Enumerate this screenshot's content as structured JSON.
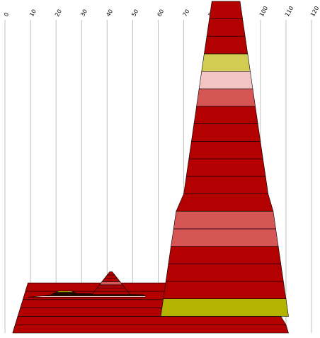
{
  "chart_data": {
    "type": "area",
    "title": "",
    "xlabel": "",
    "ylabel": "",
    "xlim": [
      0,
      120
    ],
    "x_ticks": [
      "0",
      "10",
      "20",
      "30",
      "40",
      "50",
      "60",
      "70",
      "80",
      "90",
      "100",
      "110",
      "120"
    ],
    "grid": true,
    "legend": "none",
    "colors": {
      "dark_red": "#b30000",
      "medium_red": "#d65656",
      "pink": "#f2c4c4",
      "khaki": "#d2cd52",
      "olive": "#b3b300",
      "dark_brown": "#5a1b00",
      "black_brown": "#2e0c00"
    },
    "stacks": [
      {
        "layers": [
          {
            "x": [
              3,
              111
            ],
            "color": "dark_red"
          },
          {
            "x": [
              4,
              110
            ],
            "color": "dark_red"
          },
          {
            "x": [
              5,
              108
            ],
            "color": "dark_red"
          },
          {
            "x": [
              6,
              107
            ],
            "color": "dark_red"
          },
          {
            "x": [
              7,
              106
            ],
            "color": "dark_red"
          },
          {
            "x": [
              8,
              105
            ],
            "color": "dark_red"
          }
        ]
      },
      {
        "layers": [
          {
            "x": [
              61,
              111
            ],
            "color": "olive"
          },
          {
            "x": [
              62,
              110
            ],
            "color": "dark_red"
          },
          {
            "x": [
              63,
              109
            ],
            "color": "dark_red"
          },
          {
            "x": [
              64,
              108
            ],
            "color": "dark_red"
          },
          {
            "x": [
              65,
              107
            ],
            "color": "medium_red"
          },
          {
            "x": [
              66,
              106
            ],
            "color": "medium_red"
          },
          {
            "x": [
              67,
              105
            ],
            "color": "dark_red"
          },
          {
            "x": [
              70,
              103
            ],
            "color": "dark_red"
          },
          {
            "x": [
              71,
              102
            ],
            "color": "dark_red"
          },
          {
            "x": [
              72,
              101
            ],
            "color": "dark_red"
          },
          {
            "x": [
              73,
              100
            ],
            "color": "dark_red"
          },
          {
            "x": [
              74,
              99
            ],
            "color": "dark_red"
          },
          {
            "x": [
              75,
              98
            ],
            "color": "medium_red"
          },
          {
            "x": [
              76,
              97
            ],
            "color": "pink"
          },
          {
            "x": [
              77,
              96
            ],
            "color": "khaki"
          },
          {
            "x": [
              78,
              95
            ],
            "color": "dark_red"
          },
          {
            "x": [
              79,
              94
            ],
            "color": "dark_red"
          },
          {
            "x": [
              80,
              93
            ],
            "color": "dark_red"
          }
        ]
      },
      {
        "layers": [
          {
            "x": [
              9,
              55
            ],
            "color": "pink"
          },
          {
            "x": [
              15,
              55
            ],
            "color": "dark_brown"
          },
          {
            "x": [
              18,
              54
            ],
            "color": "black_brown"
          },
          {
            "x": [
              19,
              28
            ],
            "color": "black_brown"
          },
          {
            "x": [
              20,
              27
            ],
            "color": "olive"
          }
        ]
      },
      {
        "layers": [
          {
            "x": [
              34,
              49
            ],
            "color": "dark_red"
          },
          {
            "x": [
              35,
              48
            ],
            "color": "dark_red"
          },
          {
            "x": [
              36,
              47
            ],
            "color": "dark_red"
          },
          {
            "x": [
              37,
              46
            ],
            "color": "medium_red"
          },
          {
            "x": [
              38,
              45
            ],
            "color": "dark_red"
          },
          {
            "x": [
              39,
              44
            ],
            "color": "dark_red"
          },
          {
            "x": [
              40,
              43
            ],
            "color": "dark_red"
          }
        ]
      }
    ]
  }
}
